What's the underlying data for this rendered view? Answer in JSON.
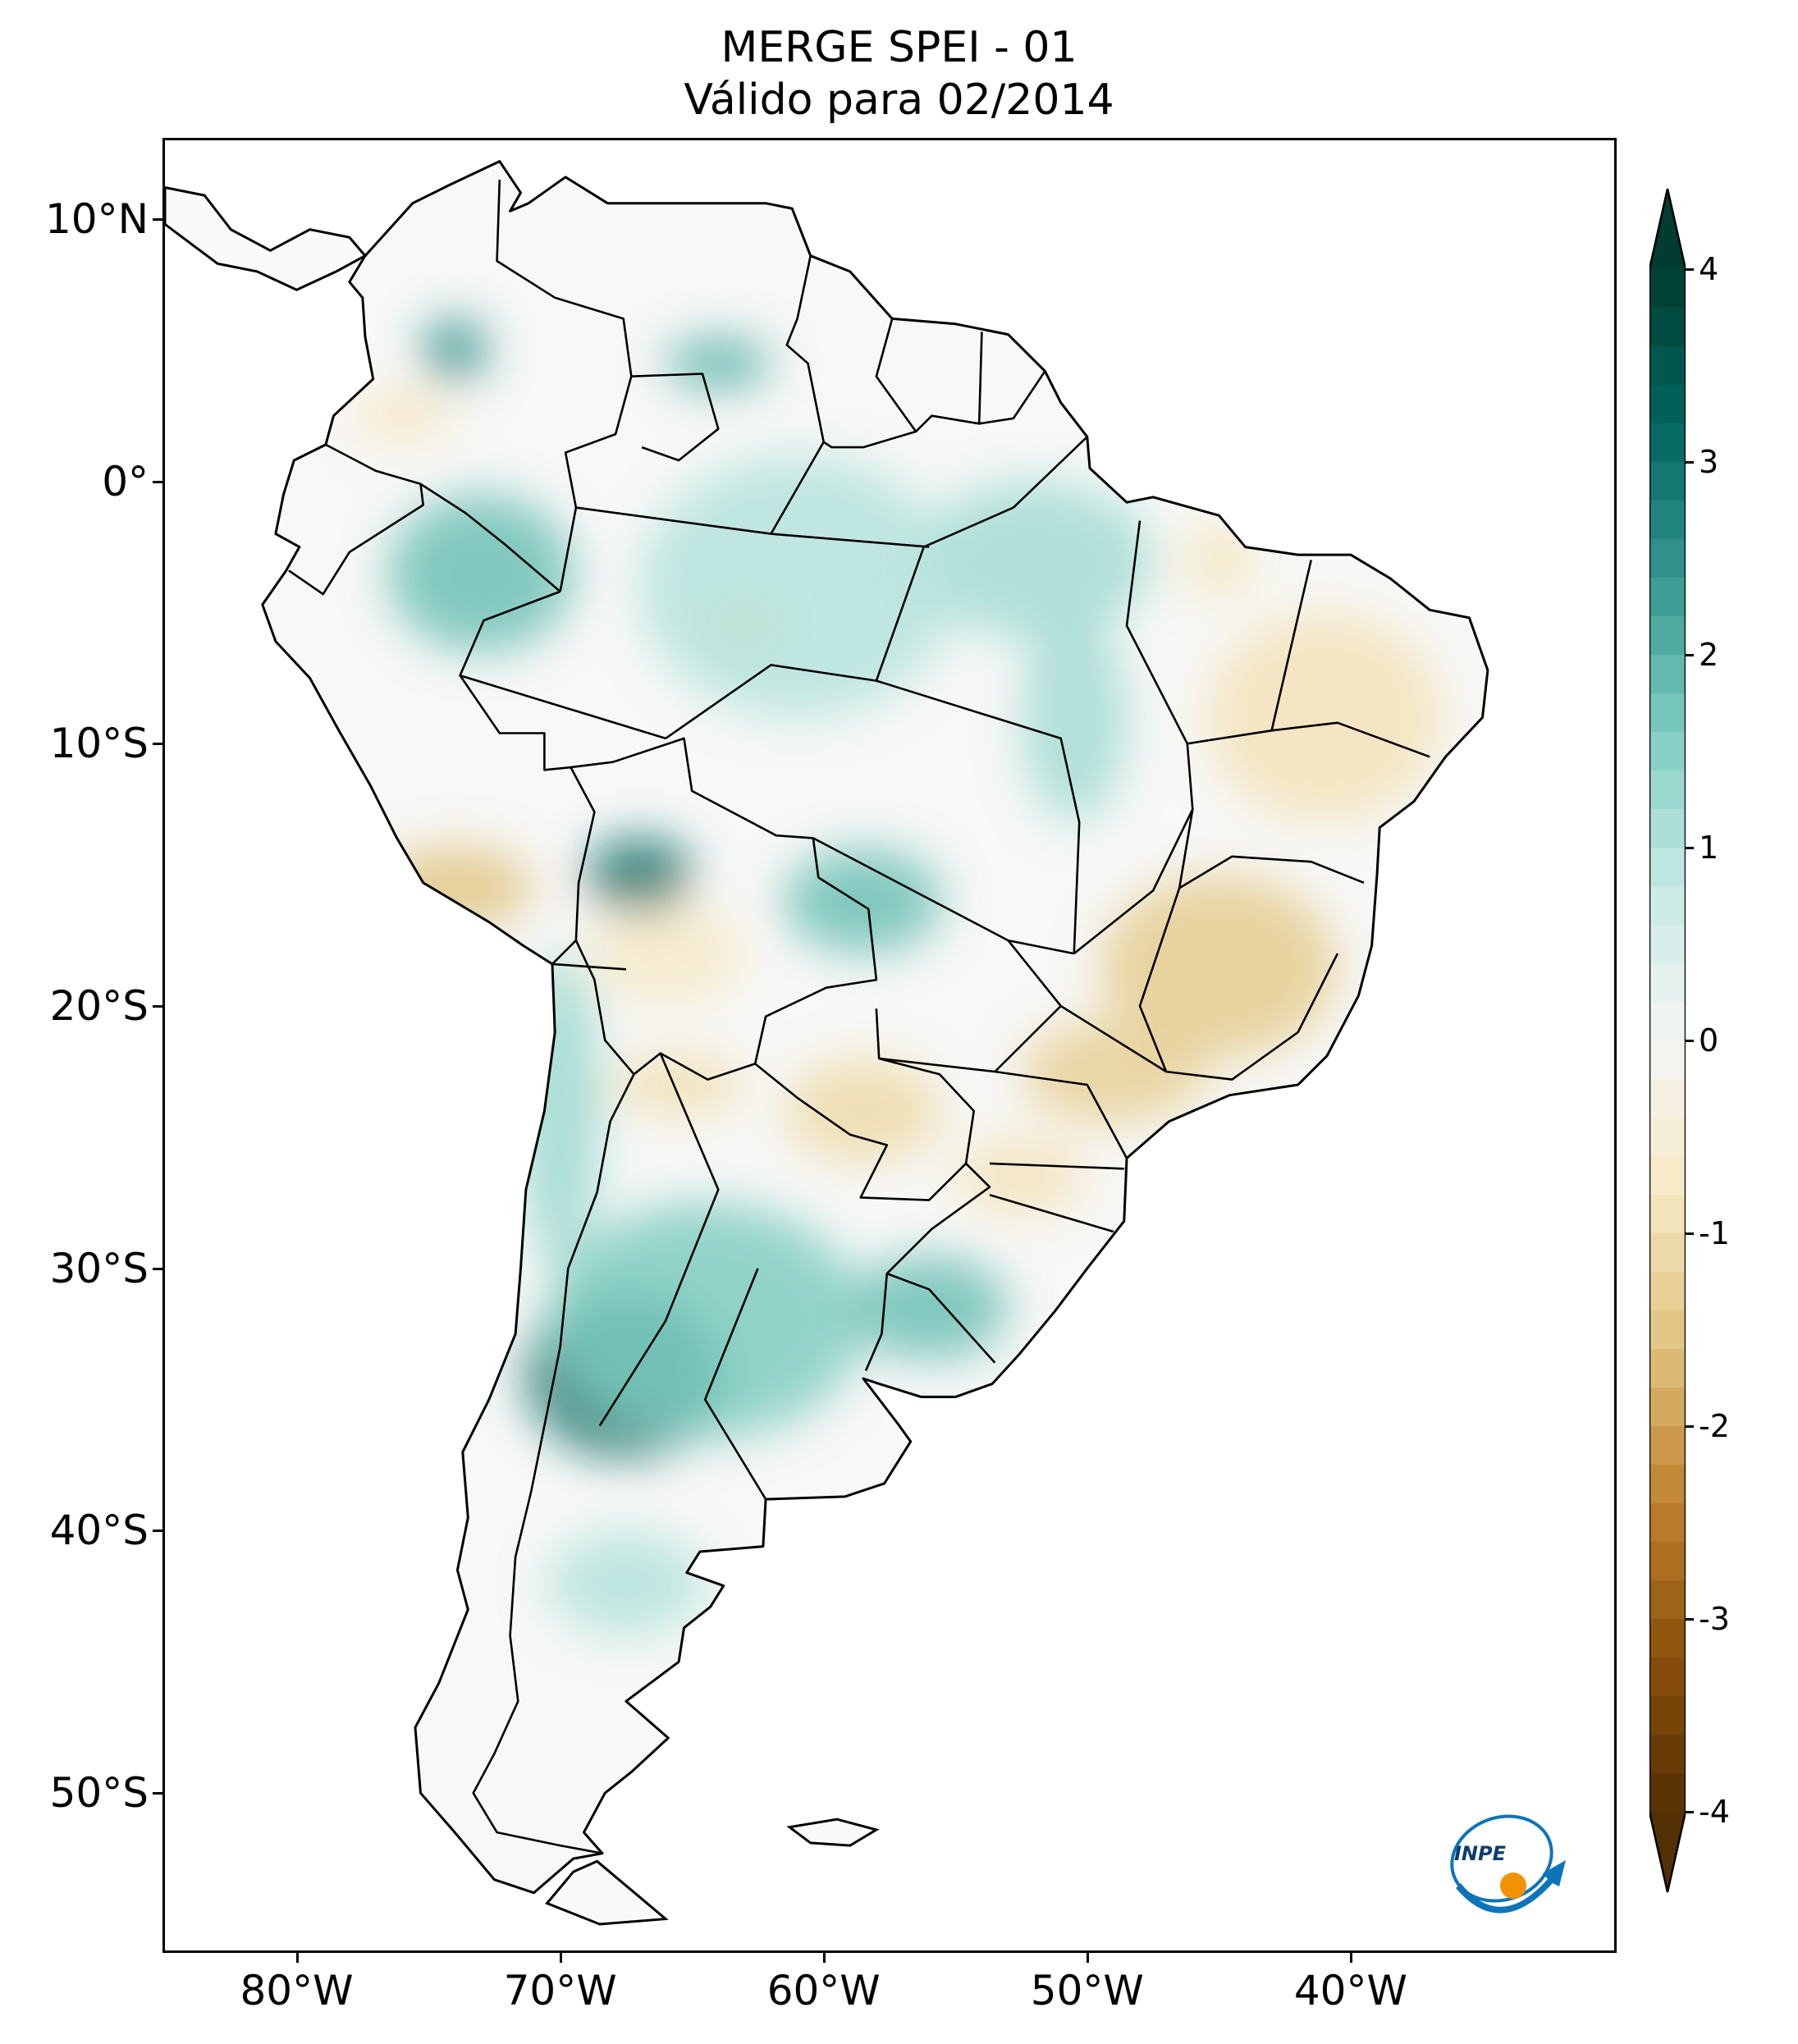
{
  "title": {
    "line1": "MERGE   SPEI - 01",
    "line2": "Válido para 02/2014"
  },
  "map": {
    "region": "South America",
    "projection": "PlateCarree",
    "lon_range": [
      -85,
      -30
    ],
    "lat_range": [
      -56,
      13
    ],
    "lat_ticks": [
      {
        "value": 10,
        "label": "10°N"
      },
      {
        "value": 0,
        "label": "0°"
      },
      {
        "value": -10,
        "label": "10°S"
      },
      {
        "value": -20,
        "label": "20°S"
      },
      {
        "value": -30,
        "label": "30°S"
      },
      {
        "value": -40,
        "label": "40°S"
      },
      {
        "value": -50,
        "label": "50°S"
      }
    ],
    "lon_ticks": [
      {
        "value": -80,
        "label": "80°W"
      },
      {
        "value": -70,
        "label": "70°W"
      },
      {
        "value": -60,
        "label": "60°W"
      },
      {
        "value": -50,
        "label": "50°W"
      },
      {
        "value": -40,
        "label": "40°W"
      }
    ],
    "ocean_color": "#ffffff",
    "border_color": "#000000",
    "wet_anomalies": [
      {
        "lon": -67.5,
        "lat": -34.0,
        "rx": 3.8,
        "ry": 3.2,
        "level": 3.0
      },
      {
        "lon": -67.0,
        "lat": -15.0,
        "rx": 2.0,
        "ry": 1.4,
        "level": 3.0
      },
      {
        "lon": -64.5,
        "lat": -32.0,
        "rx": 6.0,
        "ry": 4.5,
        "level": 1.6
      },
      {
        "lon": -56.0,
        "lat": -31.5,
        "rx": 3.0,
        "ry": 2.0,
        "level": 1.8
      },
      {
        "lon": -74.0,
        "lat": 5.0,
        "rx": 1.2,
        "ry": 1.2,
        "level": 2.5
      },
      {
        "lon": -64.0,
        "lat": 4.5,
        "rx": 2.0,
        "ry": 1.0,
        "level": 2.0
      },
      {
        "lon": -73.0,
        "lat": -3.5,
        "rx": 3.5,
        "ry": 3.0,
        "level": 1.8
      },
      {
        "lon": -58.5,
        "lat": -16.0,
        "rx": 3.0,
        "ry": 2.0,
        "level": 1.8
      },
      {
        "lon": -52.0,
        "lat": -3.0,
        "rx": 4.5,
        "ry": 3.0,
        "level": 1.2
      },
      {
        "lon": -61.0,
        "lat": -4.0,
        "rx": 6.0,
        "ry": 5.0,
        "level": 1.0
      },
      {
        "lon": -70.0,
        "lat": -24.0,
        "rx": 1.5,
        "ry": 6.0,
        "level": 1.3
      },
      {
        "lon": -67.5,
        "lat": -42.0,
        "rx": 3.0,
        "ry": 2.0,
        "level": 1.0
      },
      {
        "lon": -50.5,
        "lat": -9.0,
        "rx": 2.0,
        "ry": 4.0,
        "level": 1.2
      }
    ],
    "dry_anomalies": [
      {
        "lon": -45.0,
        "lat": -18.5,
        "rx": 4.5,
        "ry": 3.5,
        "level": -1.4
      },
      {
        "lon": -49.0,
        "lat": -22.5,
        "rx": 3.5,
        "ry": 2.0,
        "level": -1.3
      },
      {
        "lon": -74.0,
        "lat": -15.5,
        "rx": 3.0,
        "ry": 1.6,
        "level": -1.5
      },
      {
        "lon": -58.5,
        "lat": -24.0,
        "rx": 3.0,
        "ry": 2.0,
        "level": -1.1
      },
      {
        "lon": -41.0,
        "lat": -9.0,
        "rx": 4.5,
        "ry": 4.0,
        "level": -0.9
      },
      {
        "lon": -65.5,
        "lat": -23.0,
        "rx": 2.5,
        "ry": 1.2,
        "level": -1.0
      },
      {
        "lon": -63.0,
        "lat": -5.5,
        "rx": 1.5,
        "ry": 1.0,
        "level": -1.1
      },
      {
        "lon": -76.0,
        "lat": 2.5,
        "rx": 2.0,
        "ry": 1.0,
        "level": -0.8
      },
      {
        "lon": -66.0,
        "lat": -18.0,
        "rx": 3.0,
        "ry": 2.0,
        "level": -0.7
      },
      {
        "lon": -52.5,
        "lat": -26.5,
        "rx": 2.5,
        "ry": 1.5,
        "level": -0.9
      },
      {
        "lon": -45.0,
        "lat": -3.0,
        "rx": 1.5,
        "ry": 1.5,
        "level": -0.8
      }
    ]
  },
  "colorbar": {
    "min": -4,
    "max": 4,
    "extend": "both",
    "ticks": [
      {
        "value": 4,
        "label": "4"
      },
      {
        "value": 3,
        "label": "3"
      },
      {
        "value": 2,
        "label": "2"
      },
      {
        "value": 1,
        "label": "1"
      },
      {
        "value": 0,
        "label": "0"
      },
      {
        "value": -1,
        "label": "-1"
      },
      {
        "value": -2,
        "label": "-2"
      },
      {
        "value": -3,
        "label": "-3"
      },
      {
        "value": -4,
        "label": "-4"
      }
    ],
    "colormap": "BrBG",
    "color_stops": [
      "#543005",
      "#8c510a",
      "#bf812d",
      "#dfc27d",
      "#f6e8c3",
      "#f5f5f5",
      "#c7eae5",
      "#80cdc1",
      "#35978f",
      "#01665e",
      "#003c30"
    ]
  },
  "logo": {
    "name": "inpe-logo",
    "text": "INPE"
  }
}
